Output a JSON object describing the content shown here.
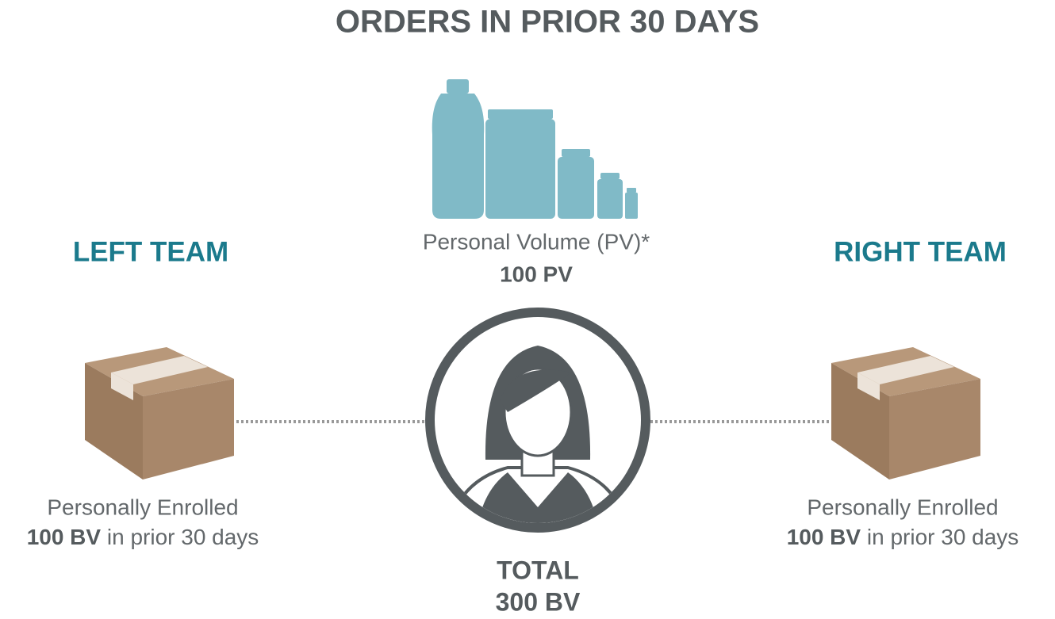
{
  "title": "ORDERS IN PRIOR 30 DAYS",
  "left_team": {
    "heading": "LEFT TEAM",
    "line1": "Personally Enrolled",
    "amount": "100 BV",
    "period": "in prior 30 days"
  },
  "personal": {
    "label": "Personal Volume (PV)*",
    "amount": "100 PV"
  },
  "total": {
    "label": "TOTAL",
    "amount": "300 BV"
  },
  "right_team": {
    "heading": "RIGHT TEAM",
    "line1": "Personally Enrolled",
    "amount": "100 BV",
    "period": "in prior 30 days"
  }
}
